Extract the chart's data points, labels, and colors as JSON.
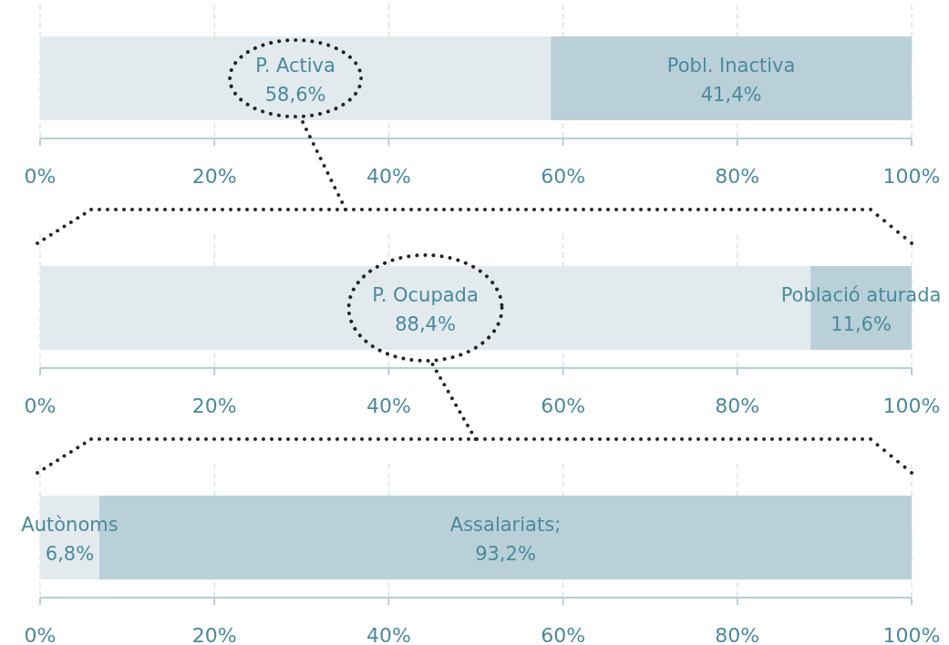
{
  "chart_data": [
    {
      "type": "bar",
      "orientation": "horizontal",
      "stacked": true,
      "categories": [
        null
      ],
      "xlim": [
        0,
        100
      ],
      "xticks": [
        {
          "value": 0,
          "label": "0%"
        },
        {
          "value": 20,
          "label": "20%"
        },
        {
          "value": 40,
          "label": "40%"
        },
        {
          "value": 60,
          "label": "60%"
        },
        {
          "value": 80,
          "label": "80%"
        },
        {
          "value": 100,
          "label": "100%"
        }
      ],
      "grid": "x",
      "series": [
        {
          "name": "P. Activa",
          "color": "#e2eaee",
          "values": [
            58.6
          ],
          "value_labels": [
            "58,6%"
          ]
        },
        {
          "name": "Pobl. Inactiva",
          "color": "#b9d0d8",
          "values": [
            41.4
          ],
          "value_labels": [
            "41,4%"
          ]
        }
      ]
    },
    {
      "type": "bar",
      "orientation": "horizontal",
      "stacked": true,
      "categories": [
        null
      ],
      "xlim": [
        0,
        100
      ],
      "xticks": [
        {
          "value": 0,
          "label": "0%"
        },
        {
          "value": 20,
          "label": "20%"
        },
        {
          "value": 40,
          "label": "40%"
        },
        {
          "value": 60,
          "label": "60%"
        },
        {
          "value": 80,
          "label": "80%"
        },
        {
          "value": 100,
          "label": "100%"
        }
      ],
      "grid": "x",
      "series": [
        {
          "name": "P. Ocupada",
          "color": "#e2eaee",
          "values": [
            88.4
          ],
          "value_labels": [
            "88,4%"
          ]
        },
        {
          "name": "Població aturada",
          "color": "#b9d0d8",
          "values": [
            11.6
          ],
          "value_labels": [
            "11,6%"
          ]
        }
      ]
    },
    {
      "type": "bar",
      "orientation": "horizontal",
      "stacked": true,
      "categories": [
        null
      ],
      "xlim": [
        0,
        100
      ],
      "xticks": [
        {
          "value": 0,
          "label": "0%"
        },
        {
          "value": 20,
          "label": "20%"
        },
        {
          "value": 40,
          "label": "40%"
        },
        {
          "value": 60,
          "label": "60%"
        },
        {
          "value": 80,
          "label": "80%"
        },
        {
          "value": 100,
          "label": "100%"
        }
      ],
      "grid": "x",
      "series": [
        {
          "name": "Autònoms",
          "color": "#e2eaee",
          "values": [
            6.8
          ],
          "value_labels": [
            "6,8%"
          ]
        },
        {
          "name": "Assalariats;",
          "color": "#b9d0d8",
          "values": [
            93.2
          ],
          "value_labels": [
            "93,2%"
          ]
        }
      ]
    }
  ]
}
